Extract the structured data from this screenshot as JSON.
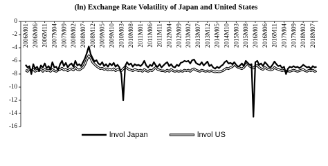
{
  "chart_data": {
    "type": "line",
    "title": "(ln) Exchange Rate Volatility of Japan and United States",
    "categories": [
      "2006M01",
      null,
      null,
      null,
      null,
      "2006M06",
      null,
      null,
      null,
      null,
      "2006M11",
      null,
      null,
      null,
      null,
      "2007M04",
      null,
      null,
      null,
      null,
      "2007M09",
      null,
      null,
      null,
      null,
      "2008M02",
      null,
      null,
      null,
      null,
      "2008M07",
      null,
      null,
      null,
      null,
      "2008M12",
      null,
      null,
      null,
      null,
      "2009M05",
      null,
      null,
      null,
      null,
      "2009M10",
      null,
      null,
      null,
      null,
      "2010M03",
      null,
      null,
      null,
      null,
      "2010M08",
      null,
      null,
      null,
      null,
      "2011M01",
      null,
      null,
      null,
      null,
      "2011M06",
      null,
      null,
      null,
      null,
      "2011M11",
      null,
      null,
      null,
      null,
      "2012M04",
      null,
      null,
      null,
      null,
      "2012M09",
      null,
      null,
      null,
      null,
      "2013M02",
      null,
      null,
      null,
      null,
      "2013M07",
      null,
      null,
      null,
      null,
      "2013M12",
      null,
      null,
      null,
      null,
      "2014M05",
      null,
      null,
      null,
      null,
      "2014M10",
      null,
      null,
      null,
      null,
      "2015M03",
      null,
      null,
      null,
      null,
      "2015M08",
      null,
      null,
      null,
      null,
      "2016M01",
      null,
      null,
      null,
      null,
      "2016M06",
      null,
      null,
      null,
      null,
      "2016M11",
      null,
      null,
      null,
      null,
      "2017M04",
      null,
      null,
      null,
      null,
      "2017M09",
      null,
      null,
      null,
      null,
      "2018M02",
      null,
      null,
      null,
      null,
      "2018M07",
      null,
      null
    ],
    "series": [
      {
        "name": "lnvol US",
        "color": "#000000",
        "style": "double",
        "values": [
          -7.4,
          -7.6,
          -7.2,
          -7.5,
          -7.3,
          -7.6,
          -7.4,
          -7.5,
          -7.2,
          -7.6,
          -7.3,
          -7.5,
          -7.4,
          -7.6,
          -7.3,
          -7.5,
          -7.6,
          -7.4,
          -7.3,
          -7.1,
          -7.4,
          -7.3,
          -7.5,
          -7.3,
          -7.2,
          -7.4,
          -7.0,
          -7.3,
          -7.4,
          -7.2,
          -7.0,
          -6.5,
          -5.8,
          -5.2,
          -5.6,
          -6.2,
          -6.5,
          -6.8,
          -7.0,
          -7.2,
          -7.1,
          -7.3,
          -7.2,
          -7.4,
          -7.3,
          -7.4,
          -7.2,
          -7.5,
          -7.3,
          -7.4,
          -7.5,
          -7.2,
          -6.9,
          -7.1,
          -7.3,
          -7.4,
          -7.5,
          -7.3,
          -7.4,
          -7.5,
          -7.4,
          -7.6,
          -7.3,
          -7.5,
          -7.6,
          -7.4,
          -7.5,
          -7.2,
          -7.0,
          -7.3,
          -7.4,
          -7.5,
          -7.5,
          -7.6,
          -7.4,
          -7.6,
          -7.3,
          -7.5,
          -7.6,
          -7.5,
          -7.6,
          -7.5,
          -7.6,
          -7.4,
          -7.5,
          -7.4,
          -7.6,
          -7.3,
          -7.2,
          -7.4,
          -7.5,
          -7.6,
          -7.4,
          -7.5,
          -7.6,
          -7.5,
          -7.6,
          -7.5,
          -7.6,
          -7.7,
          -7.6,
          -7.7,
          -7.6,
          -7.5,
          -7.3,
          -7.1,
          -7.2,
          -7.0,
          -6.9,
          -6.5,
          -6.8,
          -7.0,
          -7.1,
          -7.2,
          -7.0,
          -6.6,
          -6.4,
          -6.8,
          -7.0,
          -7.1,
          -6.8,
          -6.7,
          -7.0,
          -7.2,
          -7.3,
          -7.0,
          -7.2,
          -7.3,
          -7.4,
          -7.3,
          -7.0,
          -7.2,
          -7.3,
          -7.4,
          -7.5,
          -7.4,
          -7.6,
          -7.5,
          -7.6,
          -7.5,
          -7.4,
          -7.5,
          -7.6,
          -7.5,
          -7.4,
          -7.3,
          -7.5,
          -7.6,
          -7.4,
          -7.5,
          -7.4,
          -7.6,
          -7.5
        ]
      },
      {
        "name": "lnvol Japan",
        "color": "#000000",
        "style": "solid",
        "values": [
          -6.6,
          -7.0,
          -6.8,
          -8.0,
          -6.5,
          -7.2,
          -6.9,
          -7.5,
          -6.7,
          -7.0,
          -6.4,
          -7.1,
          -6.8,
          -7.3,
          -6.2,
          -7.0,
          -6.9,
          -7.4,
          -6.5,
          -6.0,
          -6.8,
          -6.3,
          -7.0,
          -6.6,
          -6.4,
          -6.9,
          -6.0,
          -6.7,
          -6.5,
          -6.8,
          -6.2,
          -5.6,
          -4.8,
          -3.8,
          -5.0,
          -5.6,
          -6.1,
          -5.9,
          -6.4,
          -6.6,
          -6.2,
          -6.8,
          -6.5,
          -6.9,
          -6.4,
          -6.7,
          -6.3,
          -6.9,
          -6.6,
          -7.0,
          -8.0,
          -12.0,
          -6.8,
          -6.2,
          -6.6,
          -6.4,
          -6.9,
          -6.5,
          -6.7,
          -6.6,
          -6.8,
          -6.5,
          -6.0,
          -6.7,
          -7.0,
          -6.6,
          -6.8,
          -6.2,
          -6.7,
          -6.9,
          -6.5,
          -7.0,
          -6.7,
          -6.4,
          -6.2,
          -6.8,
          -6.5,
          -6.9,
          -7.0,
          -6.6,
          -6.8,
          -6.3,
          -6.2,
          -6.0,
          -6.1,
          -6.0,
          -6.4,
          -5.9,
          -5.8,
          -6.3,
          -6.5,
          -6.6,
          -6.2,
          -6.7,
          -6.4,
          -6.1,
          -6.8,
          -6.6,
          -7.0,
          -7.2,
          -6.9,
          -7.1,
          -6.8,
          -6.6,
          -6.2,
          -6.0,
          -6.4,
          -6.3,
          -6.5,
          -6.2,
          -6.6,
          -6.9,
          -6.7,
          -6.4,
          -6.8,
          -6.0,
          -6.3,
          -6.6,
          -6.5,
          -14.5,
          -6.2,
          -6.0,
          -6.6,
          -6.4,
          -6.8,
          -6.2,
          -6.5,
          -6.9,
          -7.0,
          -6.6,
          -6.1,
          -6.5,
          -6.8,
          -6.7,
          -7.1,
          -6.9,
          -8.0,
          -7.2,
          -6.9,
          -7.0,
          -6.8,
          -7.0,
          -6.9,
          -7.1,
          -6.9,
          -6.6,
          -6.8,
          -7.0,
          -6.9,
          -7.2,
          -6.8,
          -7.0,
          -6.9
        ]
      }
    ],
    "ylim": [
      -16,
      0
    ],
    "yticks": [
      0,
      -2,
      -4,
      -6,
      -8,
      -10,
      -12,
      -14,
      -16
    ],
    "grid": false
  }
}
